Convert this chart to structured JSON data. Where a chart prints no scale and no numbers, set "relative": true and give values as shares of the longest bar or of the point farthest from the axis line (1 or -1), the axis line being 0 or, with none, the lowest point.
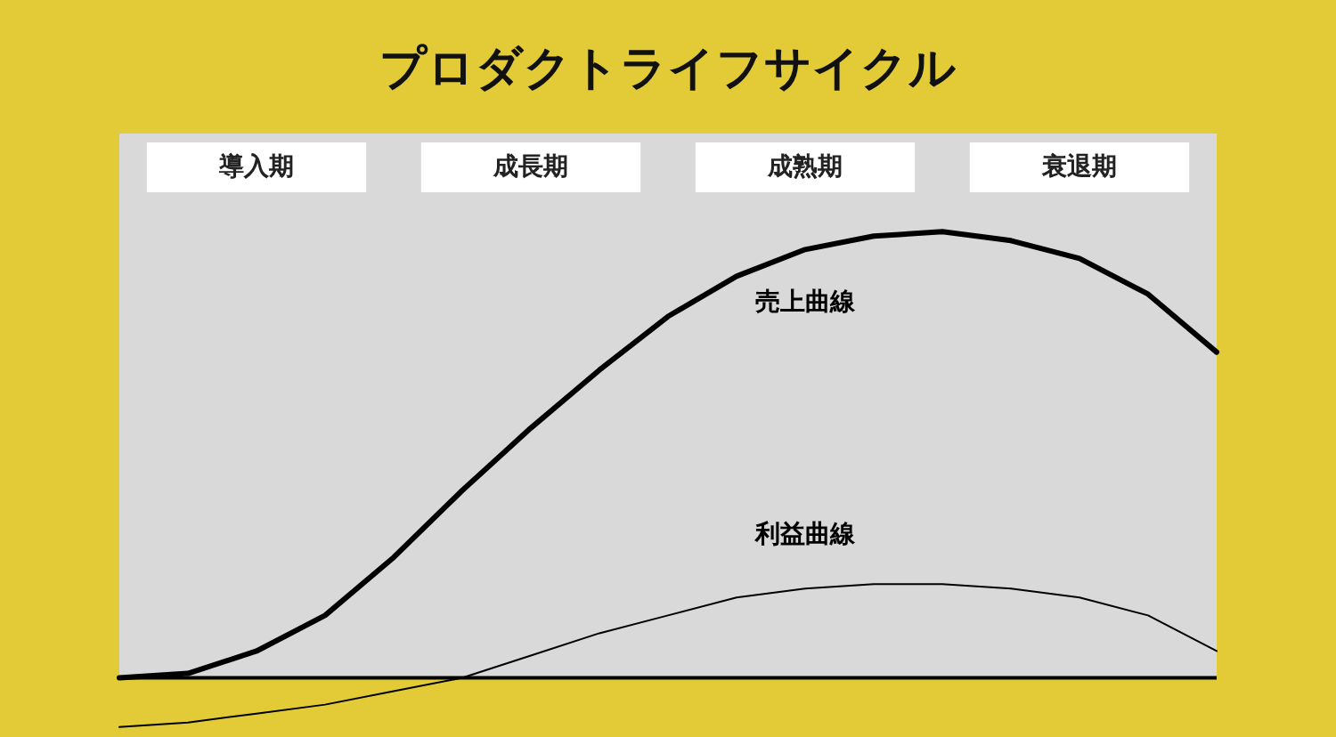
{
  "chart_data": {
    "type": "line",
    "title": "プロダクトライフサイクル",
    "relative": true,
    "categories": [
      null,
      null,
      null,
      null,
      null,
      null,
      null,
      null,
      null,
      null,
      null,
      null,
      null,
      null,
      null,
      null,
      null
    ],
    "series": [
      {
        "name": "売上曲線",
        "color": "#000000",
        "values": [
          0,
          0.01,
          0.06,
          0.14,
          0.27,
          0.42,
          0.56,
          0.69,
          0.81,
          0.9,
          0.96,
          0.99,
          1,
          0.98,
          0.94,
          0.86,
          0.73
        ]
      },
      {
        "name": "利益曲線",
        "color": "#000000",
        "values": [
          -0.11,
          -0.1,
          -0.08,
          -0.06,
          -0.03,
          0,
          0.05,
          0.1,
          0.14,
          0.18,
          0.2,
          0.21,
          0.21,
          0.2,
          0.18,
          0.14,
          0.06
        ]
      }
    ],
    "annotations": [
      "導入期",
      "成長期",
      "成熟期",
      "衰退期"
    ]
  }
}
